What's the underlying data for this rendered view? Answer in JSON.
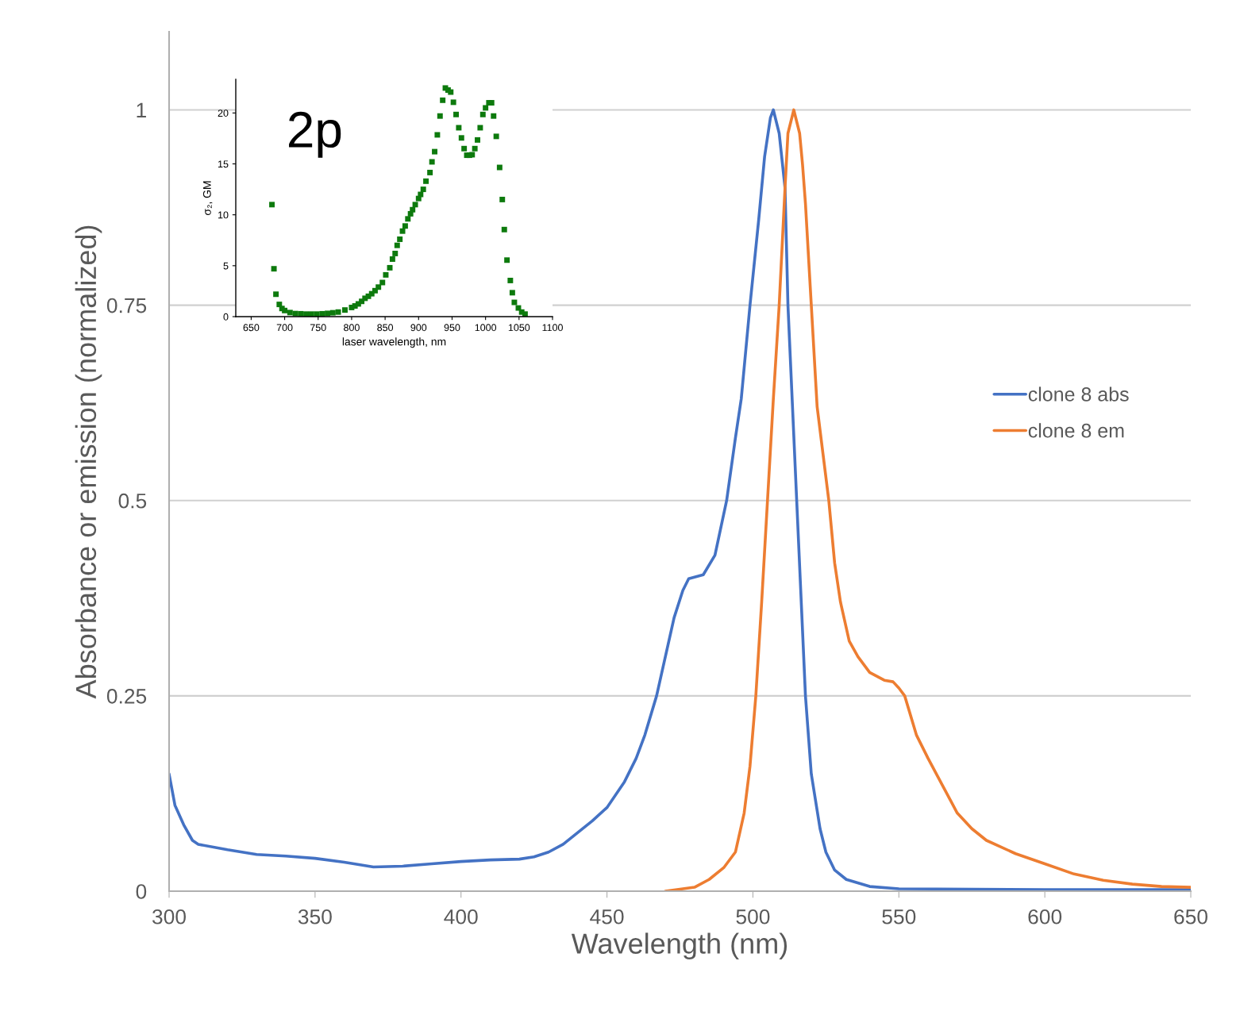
{
  "chart_data": [
    {
      "type": "line",
      "xlabel": "Wavelength (nm)",
      "ylabel": "Absorbance or emission (normalized)",
      "xlim": [
        300,
        650
      ],
      "xticks": [
        300,
        350,
        400,
        450,
        500,
        550,
        600,
        650
      ],
      "ylim": [
        0,
        1.1
      ],
      "yticks": [
        0,
        0.25,
        0.5,
        0.75,
        1
      ],
      "grid": "y",
      "legend": "right",
      "series": [
        {
          "name": "clone 8 abs",
          "color": "#4472c4",
          "x": [
            300,
            302,
            305,
            308,
            310,
            320,
            330,
            340,
            350,
            360,
            370,
            380,
            390,
            400,
            410,
            420,
            425,
            430,
            435,
            440,
            445,
            450,
            456,
            460,
            463,
            467,
            470,
            473,
            476,
            478,
            483,
            487,
            491,
            494,
            496,
            499,
            502,
            504,
            506,
            507,
            509,
            511,
            512,
            515,
            518,
            520,
            523,
            525,
            528,
            532,
            540,
            550,
            600,
            650
          ],
          "values": [
            0.15,
            0.11,
            0.085,
            0.065,
            0.06,
            0.053,
            0.047,
            0.045,
            0.042,
            0.037,
            0.031,
            0.032,
            0.035,
            0.038,
            0.04,
            0.041,
            0.044,
            0.05,
            0.06,
            0.075,
            0.09,
            0.107,
            0.14,
            0.17,
            0.2,
            0.25,
            0.3,
            0.35,
            0.385,
            0.4,
            0.405,
            0.43,
            0.5,
            0.58,
            0.63,
            0.75,
            0.86,
            0.94,
            0.99,
            1.0,
            0.97,
            0.9,
            0.75,
            0.5,
            0.25,
            0.15,
            0.08,
            0.05,
            0.027,
            0.015,
            0.006,
            0.003,
            0.002,
            0.002
          ]
        },
        {
          "name": "clone 8 em",
          "color": "#ed7d31",
          "x": [
            470,
            480,
            485,
            490,
            494,
            497,
            499,
            501,
            503,
            505,
            507,
            509,
            511,
            512,
            514,
            516,
            517,
            518,
            520,
            522,
            524,
            526,
            528,
            530,
            533,
            536,
            540,
            545,
            548,
            550,
            552,
            556,
            560,
            565,
            570,
            575,
            580,
            590,
            600,
            610,
            620,
            630,
            640,
            650
          ],
          "values": [
            0.0,
            0.005,
            0.015,
            0.03,
            0.05,
            0.1,
            0.16,
            0.25,
            0.37,
            0.5,
            0.63,
            0.75,
            0.9,
            0.97,
            1.0,
            0.97,
            0.93,
            0.88,
            0.75,
            0.62,
            0.56,
            0.5,
            0.42,
            0.37,
            0.32,
            0.3,
            0.28,
            0.27,
            0.268,
            0.26,
            0.25,
            0.2,
            0.17,
            0.135,
            0.1,
            0.08,
            0.065,
            0.048,
            0.035,
            0.022,
            0.014,
            0.009,
            0.006,
            0.005
          ]
        }
      ]
    },
    {
      "type": "scatter",
      "xlabel": "laser wavelength, nm",
      "ylabel": "σ₂, GM",
      "annotations": [
        "2p"
      ],
      "marker": "square",
      "xlim": [
        627,
        1100
      ],
      "xticks": [
        650,
        700,
        750,
        800,
        850,
        900,
        950,
        1000,
        1050,
        1100
      ],
      "ylim": [
        0,
        23.3
      ],
      "yticks": [
        0,
        5,
        10,
        15,
        20
      ],
      "grid": false,
      "legend": false,
      "series": [
        {
          "color": "#0d7a0d",
          "x": [
            681,
            684,
            687,
            692,
            696,
            700,
            708,
            716,
            724,
            732,
            740,
            748,
            756,
            764,
            772,
            780,
            790,
            800,
            805,
            810,
            815,
            820,
            825,
            830,
            835,
            840,
            846,
            851,
            857,
            861,
            865,
            868,
            872,
            876,
            880,
            884,
            888,
            891,
            895,
            900,
            903,
            907,
            911,
            917,
            920,
            924,
            928,
            932,
            936,
            940,
            944,
            948,
            952,
            956,
            960,
            964,
            968,
            972,
            976,
            980,
            984,
            988,
            992,
            996,
            1000,
            1005,
            1009,
            1012,
            1016,
            1021,
            1025,
            1028,
            1032,
            1037,
            1040,
            1043,
            1049,
            1054,
            1059
          ],
          "values": [
            11.0,
            4.7,
            2.2,
            1.2,
            0.8,
            0.6,
            0.4,
            0.3,
            0.28,
            0.25,
            0.25,
            0.25,
            0.28,
            0.32,
            0.38,
            0.45,
            0.65,
            0.9,
            1.05,
            1.25,
            1.5,
            1.8,
            2.0,
            2.25,
            2.55,
            2.9,
            3.35,
            4.1,
            4.8,
            5.65,
            6.2,
            7.0,
            7.6,
            8.4,
            8.9,
            9.6,
            10.1,
            10.5,
            11.0,
            11.6,
            12.0,
            12.5,
            13.3,
            14.15,
            15.2,
            16.2,
            17.85,
            19.7,
            21.25,
            22.45,
            22.25,
            22.05,
            21.05,
            19.85,
            18.55,
            17.55,
            16.5,
            15.85,
            15.85,
            15.9,
            16.5,
            17.35,
            18.55,
            19.85,
            20.5,
            21.0,
            21.0,
            19.7,
            17.7,
            14.65,
            11.5,
            8.55,
            5.55,
            3.55,
            2.35,
            1.4,
            0.85,
            0.45,
            0.25
          ]
        }
      ]
    }
  ]
}
